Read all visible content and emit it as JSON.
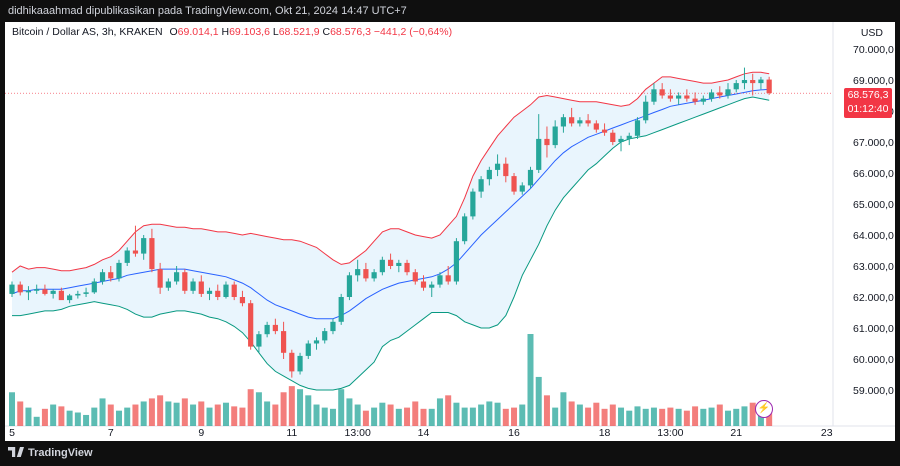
{
  "header": {
    "text": "didhikaaahmad dipublikasikan pada TradingView.com, Okt 21, 2024 14:47 UTC+7"
  },
  "legend": {
    "symbol": "Bitcoin / Dollar AS, 3h, KRAKEN",
    "o_label": "O",
    "o_value": "69.014,1",
    "h_label": "H",
    "h_value": "69.103,6",
    "l_label": "L",
    "l_value": "68.521,9",
    "c_label": "C",
    "c_value": "68.576,3",
    "change": "−441,2 (−0,64%)"
  },
  "axis": {
    "currency": "USD"
  },
  "price_badge": {
    "price": "68.576,3",
    "countdown": "01:12:40"
  },
  "footer": {
    "brand": "TradingView"
  },
  "colors": {
    "up": "#26a69a",
    "down": "#ef5350",
    "upper_band": "#f23645",
    "lower_band": "#089981",
    "basis": "#2962ff",
    "band_fill": "#e3f2fd"
  },
  "icons": {
    "bolt": "lightning-bolt-icon",
    "logo": "tradingview-logo-icon"
  },
  "chart_data": {
    "type": "candlestick",
    "y_range": [
      58500,
      70500
    ],
    "y_ticks": [
      {
        "value": 70000,
        "label": "70.000,0"
      },
      {
        "value": 69000,
        "label": "69.000,0"
      },
      {
        "value": 68000,
        "label": "68.000,0"
      },
      {
        "value": 67000,
        "label": "67.000,0"
      },
      {
        "value": 66000,
        "label": "66.000,0"
      },
      {
        "value": 65000,
        "label": "65.000,0"
      },
      {
        "value": 64000,
        "label": "64.000,0"
      },
      {
        "value": 63000,
        "label": "63.000,0"
      },
      {
        "value": 62000,
        "label": "62.000,0"
      },
      {
        "value": 61000,
        "label": "61.000,0"
      },
      {
        "value": 60000,
        "label": "60.000,0"
      },
      {
        "value": 59000,
        "label": "59.000,0"
      }
    ],
    "x_ticks": [
      {
        "index": 0,
        "label": "5"
      },
      {
        "index": 12,
        "label": "7"
      },
      {
        "index": 23,
        "label": "9"
      },
      {
        "index": 34,
        "label": "11"
      },
      {
        "index": 42,
        "label": "13:00"
      },
      {
        "index": 50,
        "label": "14"
      },
      {
        "index": 61,
        "label": "16"
      },
      {
        "index": 72,
        "label": "18"
      },
      {
        "index": 80,
        "label": "13:00"
      },
      {
        "index": 88,
        "label": "21"
      },
      {
        "index": 99,
        "label": "23"
      }
    ],
    "series": [
      {
        "name": "price",
        "candles": [
          [
            62100,
            62500,
            62000,
            62400
          ],
          [
            62400,
            62500,
            62050,
            62150
          ],
          [
            62150,
            62350,
            61900,
            62200
          ],
          [
            62200,
            62400,
            62100,
            62250
          ],
          [
            62250,
            62400,
            62050,
            62100
          ],
          [
            62100,
            62250,
            61950,
            62200
          ],
          [
            62200,
            62300,
            61950,
            61900
          ],
          [
            61900,
            62100,
            61800,
            62050
          ],
          [
            62050,
            62200,
            61950,
            62100
          ],
          [
            62100,
            62300,
            62000,
            62150
          ],
          [
            62150,
            62600,
            62100,
            62500
          ],
          [
            62500,
            62900,
            62400,
            62800
          ],
          [
            62800,
            63000,
            62500,
            62600
          ],
          [
            62600,
            63200,
            62500,
            63100
          ],
          [
            63100,
            63600,
            63000,
            63500
          ],
          [
            63500,
            64300,
            63300,
            63400
          ],
          [
            63400,
            64000,
            63200,
            63900
          ],
          [
            63900,
            64200,
            62800,
            62900
          ],
          [
            62900,
            63100,
            62100,
            62300
          ],
          [
            62300,
            62600,
            62200,
            62500
          ],
          [
            62500,
            63000,
            62400,
            62800
          ],
          [
            62800,
            62900,
            62100,
            62200
          ],
          [
            62200,
            62600,
            62100,
            62500
          ],
          [
            62500,
            62700,
            62000,
            62100
          ],
          [
            62100,
            62300,
            61900,
            62200
          ],
          [
            62200,
            62400,
            61900,
            62000
          ],
          [
            62000,
            62500,
            61950,
            62400
          ],
          [
            62400,
            62500,
            61900,
            62000
          ],
          [
            62000,
            62200,
            61700,
            61800
          ],
          [
            61800,
            61900,
            60300,
            60400
          ],
          [
            60400,
            60900,
            60200,
            60800
          ],
          [
            60800,
            61200,
            60700,
            61100
          ],
          [
            61100,
            61300,
            60800,
            60900
          ],
          [
            60900,
            61200,
            60000,
            60200
          ],
          [
            60200,
            60300,
            59400,
            59600
          ],
          [
            59600,
            60200,
            59500,
            60100
          ],
          [
            60100,
            60600,
            60000,
            60500
          ],
          [
            60500,
            60700,
            60300,
            60600
          ],
          [
            60600,
            61000,
            60500,
            60900
          ],
          [
            60900,
            61300,
            60800,
            61200
          ],
          [
            61200,
            62100,
            61100,
            62000
          ],
          [
            62000,
            62800,
            61900,
            62700
          ],
          [
            62700,
            63200,
            62500,
            62900
          ],
          [
            62900,
            63100,
            62500,
            62600
          ],
          [
            62600,
            62900,
            62500,
            62800
          ],
          [
            62800,
            63300,
            62700,
            63200
          ],
          [
            63200,
            63400,
            62900,
            63000
          ],
          [
            63000,
            63200,
            62800,
            63100
          ],
          [
            63100,
            63200,
            62700,
            62800
          ],
          [
            62800,
            62900,
            62400,
            62500
          ],
          [
            62500,
            62700,
            62200,
            62300
          ],
          [
            62300,
            62500,
            62000,
            62400
          ],
          [
            62400,
            62800,
            62300,
            62700
          ],
          [
            62700,
            63000,
            62400,
            62500
          ],
          [
            62500,
            63900,
            62400,
            63800
          ],
          [
            63800,
            64700,
            63700,
            64600
          ],
          [
            64600,
            65500,
            64500,
            65400
          ],
          [
            65400,
            65900,
            65200,
            65800
          ],
          [
            65800,
            66200,
            65600,
            66100
          ],
          [
            66100,
            66600,
            65900,
            66300
          ],
          [
            66300,
            66500,
            65700,
            65900
          ],
          [
            65900,
            66000,
            65300,
            65400
          ],
          [
            65400,
            65700,
            65300,
            65600
          ],
          [
            65600,
            66200,
            65500,
            66100
          ],
          [
            66100,
            67900,
            66000,
            67100
          ],
          [
            67100,
            67500,
            66500,
            66900
          ],
          [
            66900,
            67700,
            66800,
            67500
          ],
          [
            67500,
            67900,
            67300,
            67800
          ],
          [
            67800,
            68100,
            67500,
            67600
          ],
          [
            67600,
            67800,
            67500,
            67700
          ],
          [
            67700,
            67900,
            67500,
            67600
          ],
          [
            67600,
            67700,
            67300,
            67400
          ],
          [
            67400,
            67600,
            67200,
            67300
          ],
          [
            67300,
            67400,
            66900,
            67000
          ],
          [
            67000,
            67200,
            66700,
            67100
          ],
          [
            67100,
            67300,
            66900,
            67200
          ],
          [
            67200,
            67800,
            67100,
            67700
          ],
          [
            67700,
            68500,
            67600,
            68300
          ],
          [
            68300,
            68900,
            68200,
            68700
          ],
          [
            68700,
            68900,
            68400,
            68500
          ],
          [
            68500,
            68700,
            68300,
            68400
          ],
          [
            68400,
            68600,
            68200,
            68500
          ],
          [
            68500,
            68700,
            68300,
            68400
          ],
          [
            68400,
            68600,
            68200,
            68300
          ],
          [
            68300,
            68500,
            68200,
            68400
          ],
          [
            68400,
            68700,
            68300,
            68600
          ],
          [
            68600,
            68800,
            68400,
            68500
          ],
          [
            68500,
            68900,
            68400,
            68700
          ],
          [
            68700,
            69000,
            68600,
            68900
          ],
          [
            68900,
            69400,
            68700,
            69000
          ],
          [
            69000,
            69200,
            68500,
            68900
          ],
          [
            68900,
            69100,
            68700,
            69014
          ],
          [
            69014,
            69104,
            68522,
            68576
          ]
        ]
      },
      {
        "name": "upper",
        "values": [
          62800,
          63000,
          62900,
          62950,
          62950,
          62900,
          62850,
          62850,
          62900,
          62950,
          63050,
          63200,
          63300,
          63500,
          63800,
          64100,
          64300,
          64350,
          64350,
          64300,
          64250,
          64250,
          64200,
          64200,
          64150,
          64100,
          64100,
          64050,
          64000,
          64050,
          64000,
          63950,
          63900,
          63850,
          63850,
          63800,
          63700,
          63600,
          63400,
          63200,
          63050,
          63100,
          63300,
          63500,
          63800,
          64100,
          64200,
          64200,
          64100,
          64000,
          63950,
          63900,
          64000,
          64300,
          64600,
          65200,
          65900,
          66400,
          66800,
          67200,
          67500,
          67800,
          68000,
          68200,
          68450,
          68500,
          68450,
          68400,
          68350,
          68300,
          68300,
          68300,
          68250,
          68200,
          68150,
          68200,
          68400,
          68700,
          68900,
          69100,
          69100,
          69050,
          69000,
          68950,
          68900,
          68900,
          68950,
          69000,
          69100,
          69200,
          69250,
          69250,
          69200
        ]
      },
      {
        "name": "basis",
        "values": [
          62100,
          62200,
          62200,
          62250,
          62250,
          62250,
          62250,
          62300,
          62350,
          62400,
          62450,
          62500,
          62550,
          62600,
          62700,
          62750,
          62800,
          62850,
          62900,
          62900,
          62900,
          62900,
          62850,
          62800,
          62750,
          62700,
          62650,
          62550,
          62450,
          62300,
          62100,
          61900,
          61750,
          61650,
          61550,
          61450,
          61350,
          61300,
          61300,
          61300,
          61400,
          61550,
          61750,
          61950,
          62100,
          62250,
          62350,
          62450,
          62500,
          62550,
          62600,
          62650,
          62750,
          62900,
          63100,
          63400,
          63700,
          64000,
          64250,
          64500,
          64750,
          65000,
          65250,
          65500,
          65800,
          66100,
          66400,
          66650,
          66850,
          67000,
          67150,
          67250,
          67350,
          67450,
          67550,
          67650,
          67750,
          67850,
          67950,
          68050,
          68150,
          68200,
          68250,
          68300,
          68350,
          68400,
          68450,
          68500,
          68550,
          68600,
          68650,
          68680,
          68700
        ]
      },
      {
        "name": "lower",
        "values": [
          61400,
          61400,
          61450,
          61500,
          61550,
          61550,
          61600,
          61700,
          61750,
          61800,
          61850,
          61800,
          61750,
          61700,
          61600,
          61450,
          61350,
          61350,
          61450,
          61500,
          61550,
          61550,
          61500,
          61450,
          61350,
          61300,
          61200,
          61050,
          60850,
          60550,
          60200,
          59850,
          59600,
          59450,
          59300,
          59150,
          59050,
          59000,
          59000,
          59000,
          59050,
          59150,
          59400,
          59650,
          59900,
          60400,
          60600,
          60700,
          60900,
          61100,
          61300,
          61500,
          61500,
          61500,
          61400,
          61200,
          61100,
          61000,
          61000,
          61100,
          61400,
          62000,
          62700,
          63200,
          63700,
          64300,
          64800,
          65200,
          65500,
          65800,
          66100,
          66300,
          66550,
          66800,
          67000,
          67100,
          67150,
          67200,
          67300,
          67400,
          67500,
          67600,
          67700,
          67800,
          67900,
          68000,
          68100,
          68200,
          68300,
          68400,
          68450,
          68400,
          68350
        ]
      },
      {
        "name": "volume",
        "values": [
          55,
          40,
          30,
          15,
          28,
          35,
          32,
          25,
          22,
          18,
          30,
          45,
          35,
          25,
          30,
          35,
          40,
          45,
          50,
          40,
          38,
          45,
          35,
          40,
          30,
          35,
          38,
          32,
          30,
          60,
          55,
          40,
          35,
          55,
          65,
          60,
          50,
          35,
          30,
          28,
          60,
          45,
          35,
          25,
          30,
          38,
          35,
          28,
          30,
          40,
          28,
          28,
          45,
          50,
          38,
          30,
          30,
          35,
          40,
          38,
          28,
          30,
          35,
          150,
          80,
          50,
          30,
          55,
          40,
          35,
          30,
          38,
          28,
          35,
          30,
          25,
          32,
          28,
          30,
          28,
          30,
          28,
          25,
          32,
          28,
          30,
          35,
          25,
          28,
          32,
          38,
          35,
          32
        ]
      }
    ]
  }
}
